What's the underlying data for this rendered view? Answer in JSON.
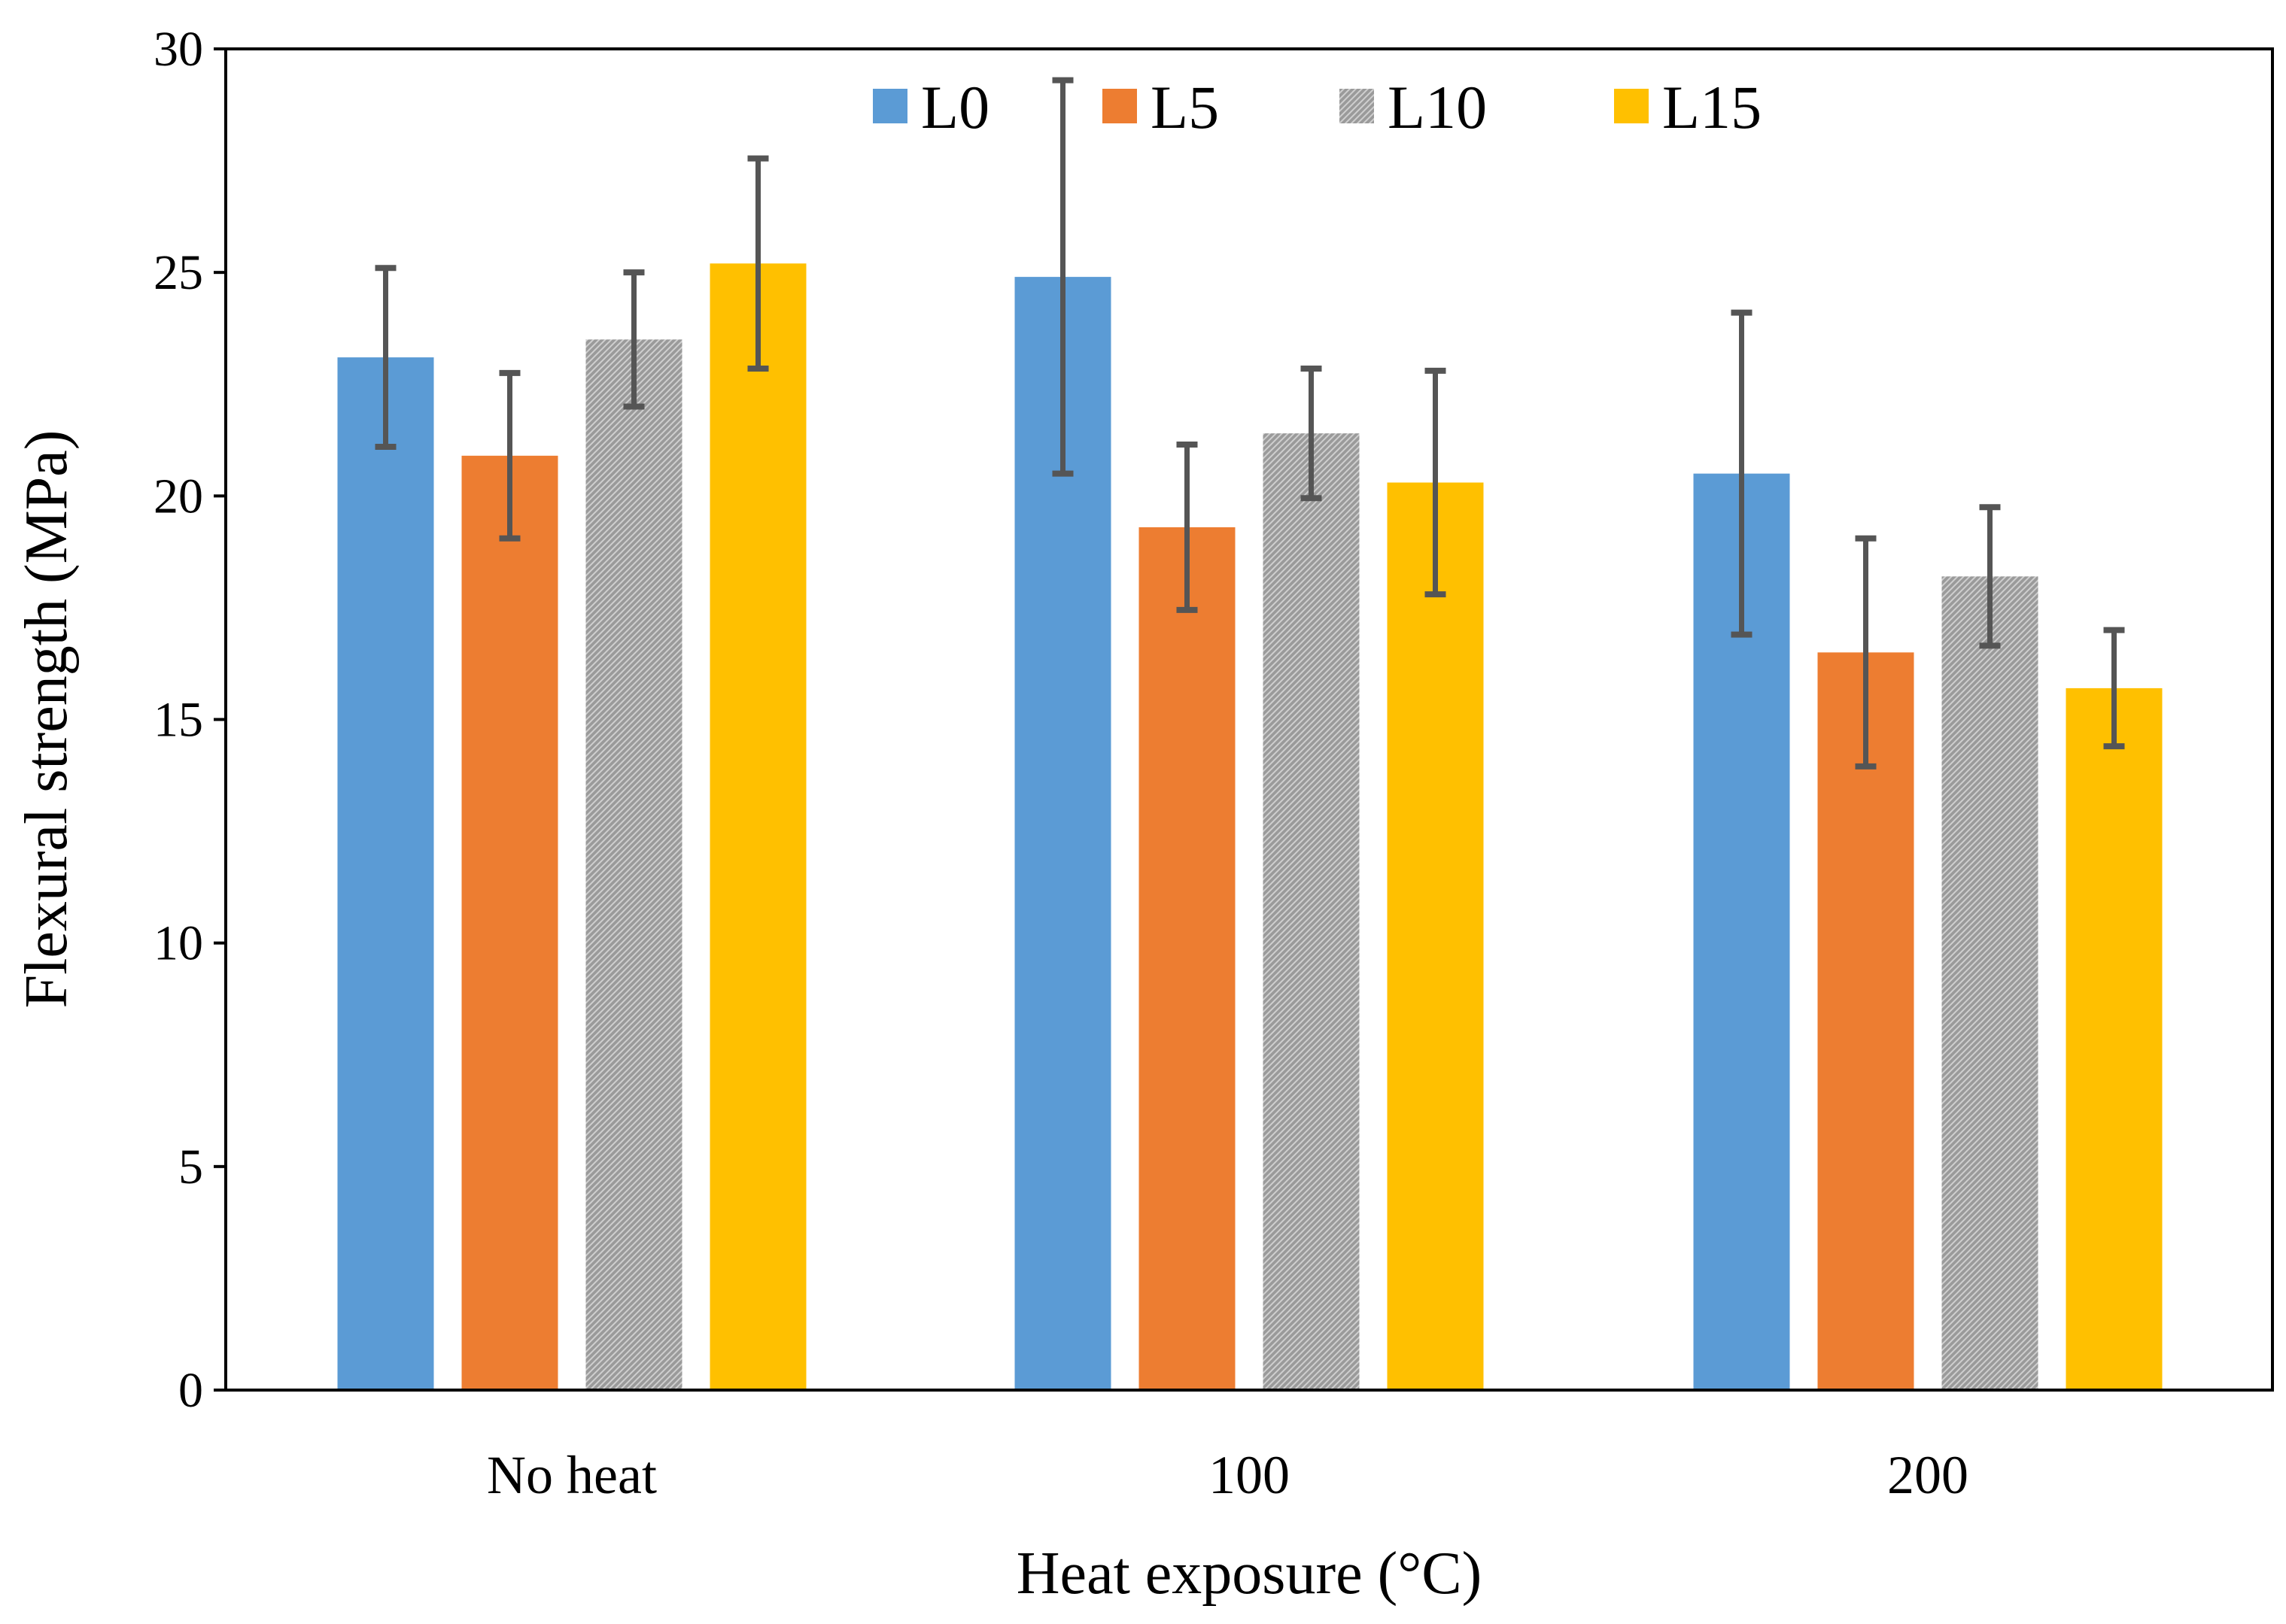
{
  "chart_data": {
    "type": "bar",
    "title": "",
    "xlabel": "Heat exposure (°C)",
    "ylabel": "Flexural strength (MPa)",
    "categories": [
      "No heat",
      "100",
      "200"
    ],
    "ylim": [
      0,
      30
    ],
    "yticks": [
      0,
      5,
      10,
      15,
      20,
      25,
      30
    ],
    "grid": false,
    "legend_position": "top",
    "series": [
      {
        "name": "L0",
        "color": "#5B9BD5",
        "pattern": false,
        "values": [
          23.1,
          24.9,
          20.5
        ],
        "errors": [
          2.0,
          4.4,
          3.6
        ]
      },
      {
        "name": "L5",
        "color": "#ED7D31",
        "pattern": false,
        "values": [
          20.9,
          19.3,
          16.5
        ],
        "errors": [
          1.85,
          1.85,
          2.55
        ]
      },
      {
        "name": "L10",
        "color": "#A5A5A5",
        "pattern": true,
        "values": [
          23.5,
          21.4,
          18.2
        ],
        "errors": [
          1.5,
          1.45,
          1.55
        ]
      },
      {
        "name": "L15",
        "color": "#FFC000",
        "pattern": false,
        "values": [
          25.2,
          20.3,
          15.7
        ],
        "errors": [
          2.35,
          2.5,
          1.3
        ]
      }
    ]
  }
}
